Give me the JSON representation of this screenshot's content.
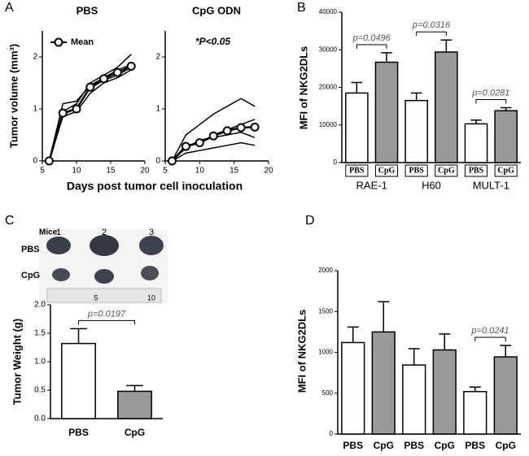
{
  "chart_data": [
    {
      "type": "line",
      "panel": "A",
      "title": "PBS",
      "ylabel": "Tumor volume (mm³)",
      "xlabel": "Days post tumor cell inoculation",
      "x": [
        6,
        8,
        10,
        12,
        14,
        16,
        18
      ],
      "xlim": [
        5,
        20
      ],
      "xticks": [
        5,
        10,
        15,
        20
      ],
      "ylim": [
        0,
        2.5
      ],
      "yticks": [
        0,
        1,
        2
      ],
      "series": [
        {
          "color": "#000000",
          "values": [
            0,
            0.95,
            1.1,
            1.5,
            1.65,
            1.8,
            2.05
          ]
        },
        {
          "color": "#000000",
          "values": [
            0,
            0.9,
            1.0,
            1.4,
            1.55,
            1.65,
            1.8
          ]
        },
        {
          "color": "#000000",
          "values": [
            0,
            0.85,
            0.95,
            1.3,
            1.5,
            1.6,
            1.75
          ]
        },
        {
          "color": "#000000",
          "values": [
            0,
            1.1,
            1.15,
            1.45,
            1.6,
            1.75,
            1.85
          ]
        },
        {
          "name": "Mean",
          "color": "#000000",
          "marker": "circle",
          "values": [
            0,
            0.92,
            1.0,
            1.42,
            1.58,
            1.7,
            1.82
          ]
        }
      ]
    },
    {
      "type": "line",
      "title": "CpG ODN",
      "annotation": "*P<0.05",
      "x": [
        6,
        8,
        10,
        12,
        14,
        16,
        18
      ],
      "xlim": [
        5,
        20
      ],
      "xticks": [
        5,
        10,
        15,
        20
      ],
      "ylim": [
        0,
        2.5
      ],
      "yticks": [
        0,
        1,
        2
      ],
      "series": [
        {
          "color": "#000000",
          "values": [
            0,
            0.5,
            0.7,
            0.9,
            1.05,
            1.2,
            1.05
          ]
        },
        {
          "color": "#000000",
          "values": [
            0,
            0.3,
            0.35,
            0.5,
            0.6,
            0.7,
            0.8
          ]
        },
        {
          "color": "#000000",
          "values": [
            0,
            0.25,
            0.4,
            0.45,
            0.5,
            0.55,
            0.45
          ]
        },
        {
          "color": "#000000",
          "values": [
            0,
            0.15,
            0.2,
            0.25,
            0.3,
            0.35,
            0.3
          ]
        },
        {
          "color": "#000000",
          "marker": "circle",
          "values": [
            0,
            0.28,
            0.35,
            0.48,
            0.58,
            0.64,
            0.65
          ]
        }
      ]
    },
    {
      "type": "bar",
      "panel": "B",
      "ylabel": "MFI of NKG2DLs",
      "categories": [
        "PBS",
        "CpG",
        "PBS",
        "CpG",
        "PBS",
        "CpG"
      ],
      "groups": [
        "RAE-1",
        "H60",
        "MULT-1"
      ],
      "values": [
        18500,
        26700,
        16500,
        29400,
        10300,
        13800
      ],
      "errors": [
        2800,
        2500,
        2000,
        3200,
        1000,
        800
      ],
      "error_bars": "both",
      "colors": [
        "#ffffff",
        "#999999",
        "#ffffff",
        "#999999",
        "#ffffff",
        "#999999"
      ],
      "ylim": [
        0,
        40000
      ],
      "yticks": [
        0,
        10000,
        20000,
        30000,
        40000
      ],
      "annotations": [
        "p=0.0496",
        "p=0.0316",
        "p=0.0281"
      ]
    },
    {
      "type": "bar",
      "panel": "C",
      "ylabel": "Tumor Weight (g)",
      "categories": [
        "PBS",
        "CpG"
      ],
      "values": [
        1.32,
        0.48
      ],
      "errors": [
        0.26,
        0.1
      ],
      "error_bars": "both",
      "colors": [
        "#ffffff",
        "#999999"
      ],
      "ylim": [
        0,
        2
      ],
      "yticks": [
        {
          "value": 0,
          "label": "0.0"
        },
        0.5,
        {
          "value": 1,
          "label": "1.0"
        },
        1.5,
        {
          "value": 2,
          "label": "2.0"
        }
      ],
      "annotations": [
        "p=0.0197"
      ]
    },
    {
      "type": "bar",
      "panel": "D",
      "ylabel": "MFI of NKG2DLs",
      "categories": [
        "PBS",
        "CpG",
        "PBS",
        "CpG",
        "PBS",
        "CpG"
      ],
      "values": [
        1120,
        1250,
        845,
        1030,
        520,
        945
      ],
      "errors": [
        190,
        370,
        200,
        195,
        55,
        140
      ],
      "error_bars": "up",
      "colors": [
        "#ffffff",
        "#999999",
        "#ffffff",
        "#999999",
        "#ffffff",
        "#999999"
      ],
      "ylim": [
        0,
        2000
      ],
      "yticks": [
        0,
        500,
        1000,
        1500,
        2000
      ],
      "annotations": [
        "p=0.0241"
      ]
    }
  ],
  "photo": {
    "header": "Mice:",
    "mice": [
      "1",
      "2",
      "3"
    ],
    "rows": [
      "PBS",
      "CpG"
    ],
    "ruler": [
      "5",
      "10"
    ]
  }
}
